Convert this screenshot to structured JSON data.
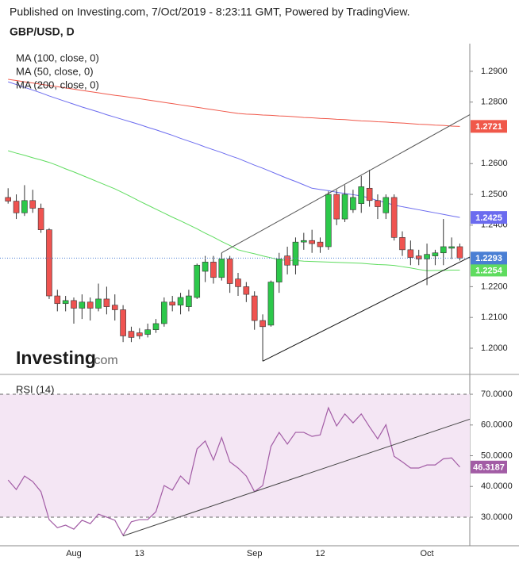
{
  "header": {
    "published": "Published on Investing.com, 7/Oct/2019 - 8:23:11 GMT, Powered by TradingView."
  },
  "watermark": {
    "brand": "Investing",
    "suffix": ".com"
  },
  "chart_data": [
    {
      "type": "candlestick",
      "title": "GBP/USD, D",
      "legend": "top-left",
      "grid": false,
      "up_color": "#2cc84a",
      "down_color": "#ef5350",
      "last_price_line": true,
      "last_price_color": "#4a7fd4",
      "ylim": [
        1.192,
        1.299
      ],
      "yticks": [
        {
          "value": 1.29,
          "label": "1.2900"
        },
        {
          "value": 1.28,
          "label": "1.2800"
        },
        {
          "value": 1.26,
          "label": "1.2600"
        },
        {
          "value": 1.25,
          "label": "1.2500"
        },
        {
          "value": 1.24,
          "label": "1.2400"
        },
        {
          "value": 1.22,
          "label": "1.2200"
        },
        {
          "value": 1.21,
          "label": "1.2100"
        },
        {
          "value": 1.2,
          "label": "1.2000"
        }
      ],
      "open": [
        1.249,
        1.2478,
        1.244,
        1.248,
        1.2455,
        1.2385,
        1.217,
        1.2145,
        1.2155,
        1.213,
        1.215,
        1.213,
        1.216,
        1.214,
        1.2125,
        1.2055,
        1.205,
        1.2045,
        1.206,
        1.208,
        1.215,
        1.214,
        1.2135,
        1.2165,
        1.225,
        1.228,
        1.223,
        1.229,
        1.2225,
        1.22,
        1.217,
        1.209,
        1.2075,
        1.2215,
        1.23,
        1.227,
        1.2345,
        1.235,
        1.2345,
        1.233,
        1.25,
        1.242,
        1.245,
        1.247,
        1.252,
        1.248,
        1.244,
        1.249,
        1.236,
        1.232,
        1.23,
        1.229,
        1.23,
        1.231,
        1.2325,
        1.233
      ],
      "high": [
        1.252,
        1.25,
        1.253,
        1.2515,
        1.247,
        1.239,
        1.219,
        1.217,
        1.2165,
        1.2175,
        1.2165,
        1.221,
        1.22,
        1.2175,
        1.214,
        1.207,
        1.2065,
        1.208,
        1.2095,
        1.2165,
        1.217,
        1.218,
        1.219,
        1.2275,
        1.23,
        1.23,
        1.231,
        1.23,
        1.2245,
        1.2215,
        1.2185,
        1.211,
        1.222,
        1.231,
        1.233,
        1.236,
        1.2375,
        1.2385,
        1.236,
        1.251,
        1.2515,
        1.253,
        1.2515,
        1.256,
        1.258,
        1.25,
        1.25,
        1.25,
        1.238,
        1.235,
        1.232,
        1.234,
        1.232,
        1.242,
        1.236,
        1.234
      ],
      "low": [
        1.247,
        1.242,
        1.243,
        1.244,
        1.2375,
        1.216,
        1.212,
        1.212,
        1.208,
        1.2095,
        1.209,
        1.212,
        1.211,
        1.209,
        1.202,
        1.202,
        1.203,
        1.2035,
        1.205,
        1.207,
        1.212,
        1.211,
        1.212,
        1.216,
        1.2215,
        1.221,
        1.222,
        1.218,
        1.217,
        1.215,
        1.206,
        1.1958,
        1.207,
        1.218,
        1.224,
        1.224,
        1.232,
        1.231,
        1.231,
        1.232,
        1.24,
        1.241,
        1.244,
        1.244,
        1.246,
        1.242,
        1.242,
        1.235,
        1.23,
        1.227,
        1.227,
        1.2205,
        1.227,
        1.227,
        1.229,
        1.2285
      ],
      "close": [
        1.2478,
        1.244,
        1.248,
        1.2455,
        1.2385,
        1.217,
        1.2145,
        1.2155,
        1.213,
        1.215,
        1.213,
        1.216,
        1.2135,
        1.2125,
        1.204,
        1.2035,
        1.204,
        1.206,
        1.208,
        1.215,
        1.214,
        1.2165,
        1.217,
        1.227,
        1.228,
        1.223,
        1.229,
        1.221,
        1.22,
        1.2175,
        1.209,
        1.207,
        1.2215,
        1.229,
        1.227,
        1.2345,
        1.235,
        1.234,
        1.233,
        1.25,
        1.242,
        1.25,
        1.249,
        1.2525,
        1.248,
        1.246,
        1.249,
        1.236,
        1.232,
        1.2295,
        1.229,
        1.2305,
        1.231,
        1.233,
        1.233,
        1.2293
      ],
      "series": [
        {
          "name": "MA (100, close, 0)",
          "color": "#6b6bef",
          "values": [
            1.2866,
            1.2857,
            1.2848,
            1.2839,
            1.283,
            1.282,
            1.2811,
            1.2802,
            1.2793,
            1.2784,
            1.2776,
            1.2768,
            1.2759,
            1.2751,
            1.2743,
            1.2735,
            1.2727,
            1.2718,
            1.271,
            1.2701,
            1.2692,
            1.2682,
            1.2673,
            1.2664,
            1.2654,
            1.2645,
            1.2636,
            1.2626,
            1.2617,
            1.2606,
            1.2595,
            1.2585,
            1.2574,
            1.2563,
            1.2552,
            1.2542,
            1.2531,
            1.252,
            1.2516,
            1.2512,
            1.2507,
            1.2503,
            1.2499,
            1.2495,
            1.2488,
            1.248,
            1.2473,
            1.2465,
            1.246,
            1.2455,
            1.245,
            1.2445,
            1.244,
            1.2435,
            1.243,
            1.2425
          ]
        },
        {
          "name": "MA (50, close, 0)",
          "color": "#5fdc5f",
          "values": [
            1.2642,
            1.2634,
            1.2627,
            1.2619,
            1.2612,
            1.2604,
            1.2594,
            1.2583,
            1.2573,
            1.2562,
            1.2551,
            1.254,
            1.2529,
            1.2518,
            1.2505,
            1.2492,
            1.2478,
            1.2465,
            1.2452,
            1.2439,
            1.2426,
            1.2414,
            1.2401,
            1.2388,
            1.2374,
            1.2361,
            1.2347,
            1.2334,
            1.232,
            1.2313,
            1.2307,
            1.23,
            1.2294,
            1.2287,
            1.2286,
            1.2285,
            1.2283,
            1.2282,
            1.2281,
            1.228,
            1.2279,
            1.2278,
            1.2277,
            1.2276,
            1.2274,
            1.2272,
            1.2271,
            1.2269,
            1.2265,
            1.2261,
            1.2256,
            1.2252,
            1.2253,
            1.2253,
            1.2254,
            1.2254
          ]
        },
        {
          "name": "MA (200, close, 0)",
          "color": "#f0584a",
          "values": [
            1.2874,
            1.287,
            1.2866,
            1.2862,
            1.2858,
            1.2854,
            1.285,
            1.2846,
            1.2842,
            1.2838,
            1.2834,
            1.283,
            1.2826,
            1.2822,
            1.2819,
            1.2815,
            1.2811,
            1.2807,
            1.2803,
            1.2799,
            1.2795,
            1.2791,
            1.2787,
            1.2783,
            1.2779,
            1.2775,
            1.2771,
            1.2767,
            1.2763,
            1.2761,
            1.276,
            1.2758,
            1.2757,
            1.2755,
            1.2754,
            1.2752,
            1.275,
            1.2749,
            1.2747,
            1.2746,
            1.2744,
            1.2743,
            1.2741,
            1.2739,
            1.2738,
            1.2736,
            1.2735,
            1.2733,
            1.2732,
            1.273,
            1.2728,
            1.2727,
            1.2725,
            1.2724,
            1.2722,
            1.2721
          ]
        }
      ],
      "trendlines": [
        {
          "x": [
            26,
            55
          ],
          "y": [
            1.231,
            1.2741
          ],
          "color": "#555555"
        },
        {
          "x": [
            31,
            55
          ],
          "y": [
            1.1958,
            1.228
          ],
          "color": "#111111"
        }
      ]
    },
    {
      "type": "line",
      "title": "RSI (14)",
      "color": "#a25ca5",
      "band": [
        30,
        70
      ],
      "band_color": "#f4e6f4",
      "ylim": [
        20.7,
        74.4
      ],
      "yticks": [
        {
          "value": 70,
          "label": "70.0000"
        },
        {
          "value": 60,
          "label": "60.0000"
        },
        {
          "value": 50,
          "label": "50.0000"
        },
        {
          "value": 40,
          "label": "40.0000"
        },
        {
          "value": 30,
          "label": "30.0000"
        }
      ],
      "categories": [
        null,
        null,
        null,
        null,
        null,
        null,
        null,
        null,
        "Aug",
        null,
        null,
        null,
        null,
        null,
        null,
        null,
        "13",
        null,
        null,
        null,
        null,
        null,
        null,
        null,
        null,
        null,
        null,
        null,
        null,
        null,
        "Sep",
        null,
        null,
        null,
        null,
        null,
        null,
        null,
        "12",
        null,
        null,
        null,
        null,
        null,
        null,
        null,
        null,
        null,
        null,
        null,
        null,
        "Oct",
        null,
        null,
        null,
        null
      ],
      "values": [
        42.1,
        39,
        43.4,
        41.6,
        38.3,
        29.2,
        26.6,
        27.4,
        26.1,
        29,
        27.9,
        31,
        30,
        29,
        24.1,
        28.5,
        29.2,
        29.2,
        31.8,
        40.3,
        38.8,
        43.4,
        40.8,
        52.2,
        54.8,
        48.6,
        55.9,
        48,
        46,
        43.4,
        38.3,
        40.3,
        53,
        57.6,
        53.8,
        57.6,
        57.6,
        56.3,
        56.8,
        65.6,
        59.7,
        63.6,
        60.7,
        63.6,
        59.4,
        55.5,
        60.1,
        49.8,
        48,
        46,
        46,
        47,
        47,
        49,
        49.3,
        46.3187
      ],
      "trendlines": [
        {
          "x": [
            14,
            55
          ],
          "y": [
            23.9,
            60.8
          ],
          "color": "#444444"
        }
      ]
    }
  ]
}
